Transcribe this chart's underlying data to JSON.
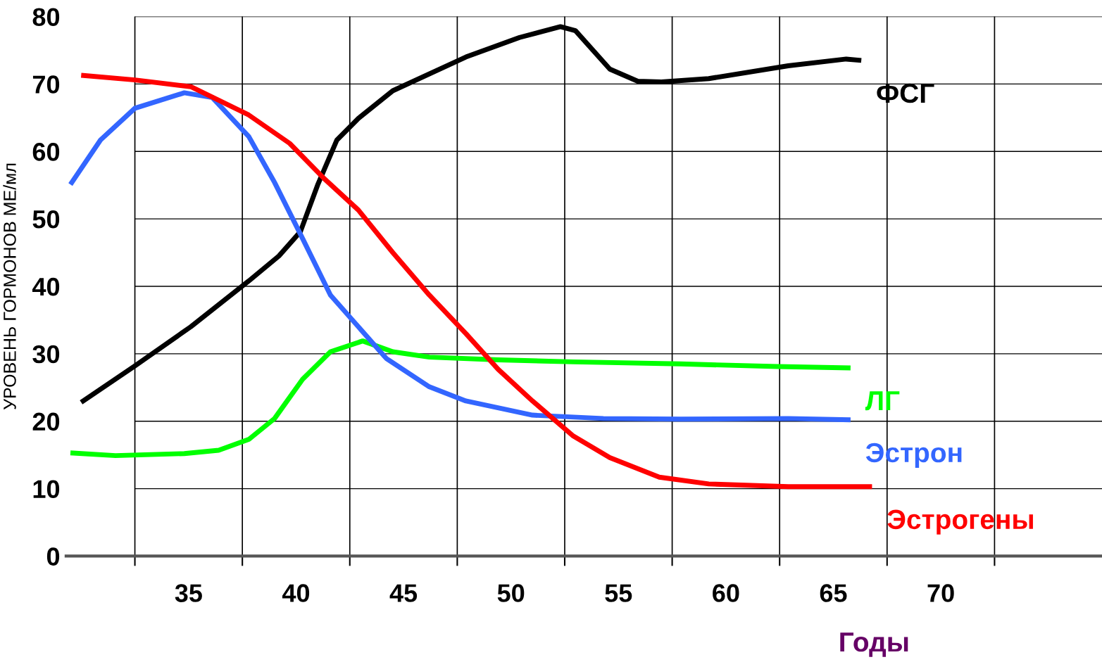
{
  "chart_data": {
    "type": "line",
    "xlabel": "Годы",
    "ylabel": "УРОВЕНЬ ГОРМОНОВ МЕ/мл",
    "xlim": [
      29.3,
      77.5
    ],
    "ylim": [
      0,
      80
    ],
    "xticks": [
      {
        "value": 32.5,
        "label": null
      },
      35,
      {
        "value": 37.5,
        "label": null
      },
      40,
      {
        "value": 42.5,
        "label": null
      },
      45,
      {
        "value": 47.5,
        "label": null
      },
      50,
      {
        "value": 52.5,
        "label": null
      },
      55,
      {
        "value": 57.5,
        "label": null
      },
      60,
      {
        "value": 62.5,
        "label": null
      },
      65,
      {
        "value": 67.5,
        "label": null
      },
      70,
      {
        "value": 72.5,
        "label": null
      }
    ],
    "yticks": [
      0,
      10,
      20,
      30,
      40,
      50,
      60,
      70,
      80
    ],
    "grid": true,
    "legend": false,
    "marker": "none",
    "line_style": "solid",
    "series": [
      {
        "name": "ФСГ",
        "color": "#000000",
        "x": [
          30.0,
          32.5,
          35.1,
          37.8,
          39.2,
          40.2,
          41.0,
          41.9,
          42.9,
          44.5,
          47.9,
          50.4,
          52.3,
          53.0,
          54.6,
          55.9,
          57.0,
          59.2,
          62.9,
          65.6,
          66.3
        ],
        "values": [
          22.8,
          28.2,
          34,
          40.8,
          44.5,
          48.1,
          55,
          61.7,
          64.9,
          69,
          74,
          76.9,
          78.5,
          77.9,
          72.2,
          70.4,
          70.3,
          70.8,
          72.7,
          73.7,
          73.5
        ]
      },
      {
        "name": "ЛГ",
        "color": "#00ff00",
        "x": [
          29.5,
          31.6,
          34.8,
          36.4,
          37.8,
          39.0,
          40.3,
          41.6,
          43.1,
          44.5,
          46.2,
          49.4,
          52.9,
          57.9,
          62.4,
          65.8
        ],
        "values": [
          15.3,
          14.9,
          15.2,
          15.7,
          17.3,
          20.4,
          26.2,
          30.3,
          31.9,
          30.3,
          29.5,
          29.1,
          28.8,
          28.5,
          28.1,
          27.9
        ]
      },
      {
        "name": "Эстрон",
        "color": "#3366ff",
        "x": [
          29.5,
          30.9,
          32.5,
          34.8,
          36.1,
          37.8,
          39.0,
          40.3,
          41.6,
          42.9,
          44.2,
          46.2,
          47.9,
          51.0,
          54.3,
          57.9,
          62.9,
          65.8
        ],
        "values": [
          55.1,
          61.7,
          66.4,
          68.7,
          68,
          62.2,
          55.4,
          47.1,
          38.7,
          34,
          29.3,
          25.1,
          23,
          20.9,
          20.4,
          20.3,
          20.4,
          20.2
        ]
      },
      {
        "name": "Эстрогены",
        "color": "#ff0000",
        "x": [
          30.0,
          32.5,
          35.1,
          37.8,
          39.7,
          41.3,
          42.9,
          44.5,
          46.2,
          47.9,
          49.4,
          51.0,
          52.9,
          54.6,
          56.9,
          59.2,
          62.9,
          66.8
        ],
        "values": [
          71.3,
          70.6,
          69.6,
          65.4,
          61.2,
          56,
          51.3,
          45,
          38.7,
          33,
          27.7,
          23,
          17.8,
          14.6,
          11.7,
          10.7,
          10.3,
          10.3
        ]
      }
    ]
  }
}
